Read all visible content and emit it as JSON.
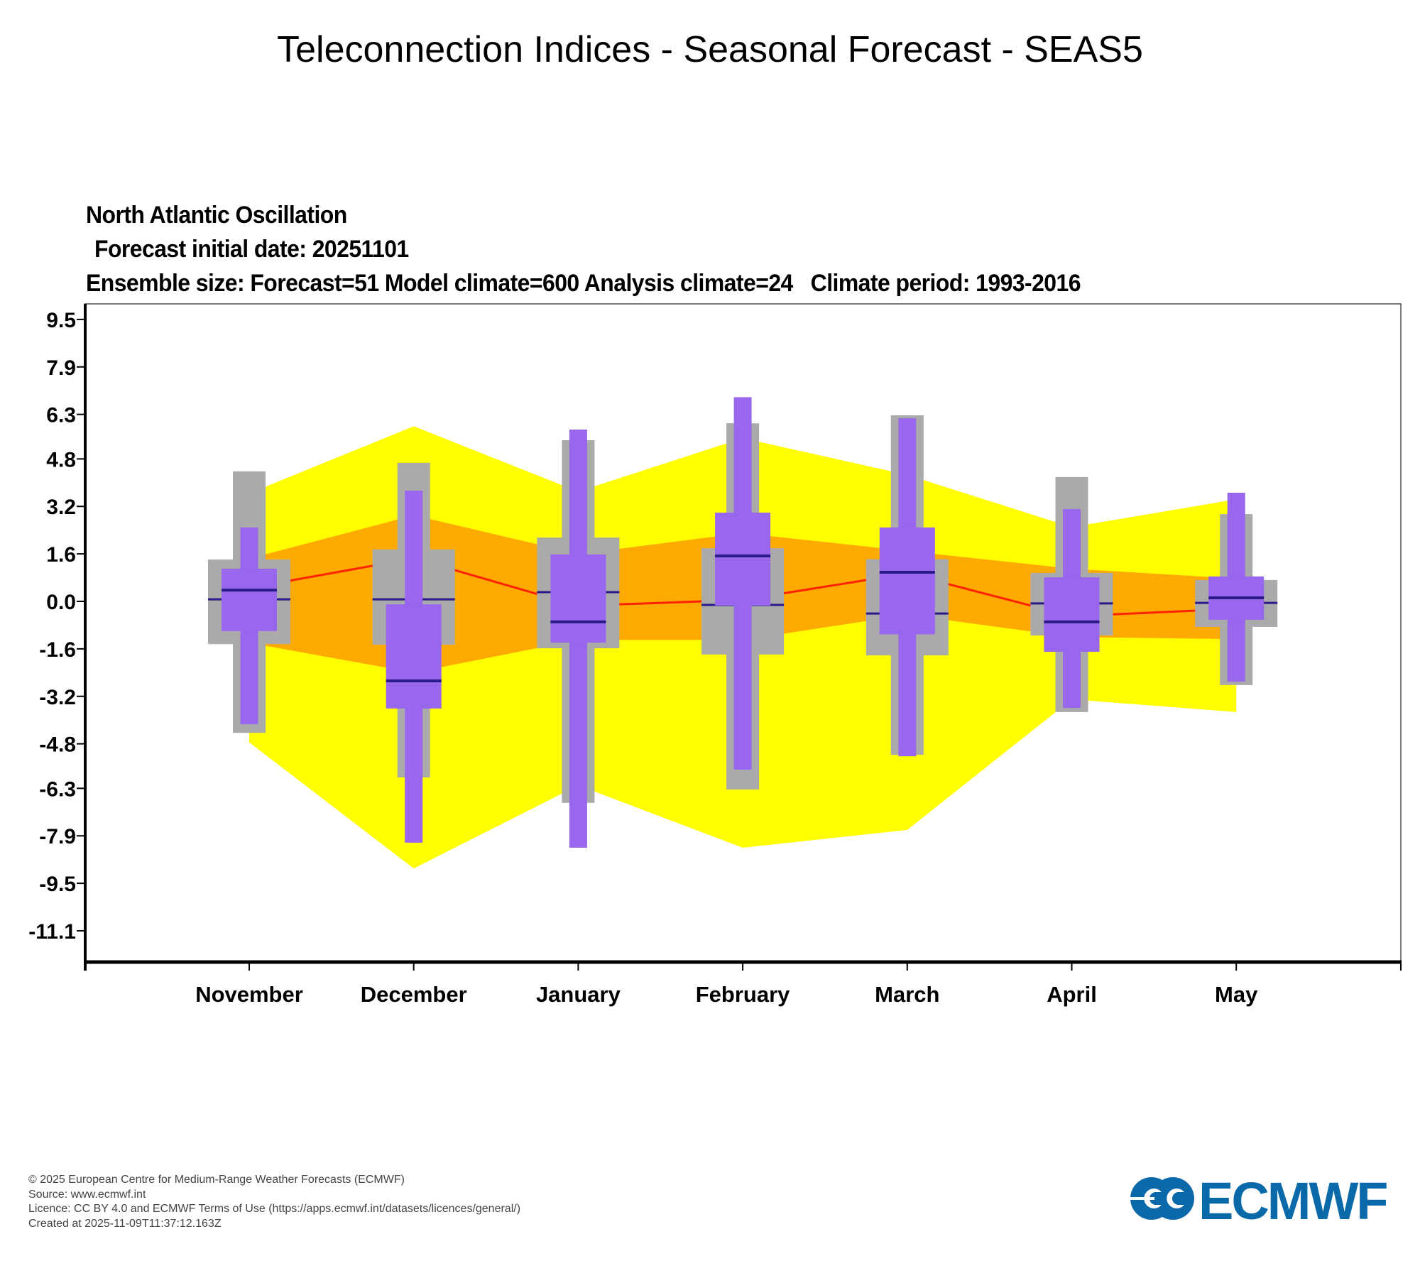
{
  "header": {
    "title": "Teleconnection Indices - Seasonal Forecast - SEAS5"
  },
  "chart_data": {
    "type": "box",
    "title": "North Atlantic Oscillation",
    "subtitle_lines": [
      "North Atlantic Oscillation",
      "Forecast initial date: 20251101",
      "Ensemble size: Forecast=51 Model climate=600 Analysis climate=24   Climate period: 1993-2016"
    ],
    "xlabel": "",
    "ylabel": "",
    "categories": [
      "November",
      "December",
      "January",
      "February",
      "March",
      "April",
      "May"
    ],
    "yticks": [
      9.5,
      7.9,
      6.3,
      4.8,
      3.2,
      1.6,
      0.0,
      -1.6,
      -3.2,
      -4.8,
      -6.3,
      -7.9,
      -9.5,
      -11.1
    ],
    "ytick_labels": [
      "9.5",
      "7.9",
      "6.3",
      "4.8",
      "3.2",
      "1.6",
      "0.0",
      "-1.6",
      "-3.2",
      "-4.8",
      "-6.3",
      "-7.9",
      "-9.5",
      "-11.1"
    ],
    "ylim": [
      -11.9,
      10.0
    ],
    "grid": false,
    "legend": "none",
    "colors": {
      "analysis_outer": "#ffff00",
      "analysis_inner": "#ffaa00",
      "analysis_median": "#ff2200",
      "model_climate": "#aaaaaa",
      "forecast": "#9966ee",
      "median_line": "#2a1a88"
    },
    "analysis_climate": {
      "name": "Analysis climate",
      "outer_upper": [
        3.64,
        5.9,
        3.7,
        5.5,
        4.26,
        2.5,
        3.44
      ],
      "outer_lower": [
        -4.75,
        -9.0,
        -6.2,
        -8.3,
        -7.7,
        -3.3,
        -3.73
      ],
      "inner_upper": [
        1.44,
        2.9,
        1.6,
        2.3,
        1.7,
        1.1,
        0.77
      ],
      "inner_lower": [
        -1.4,
        -2.4,
        -1.3,
        -1.3,
        -0.45,
        -1.2,
        -1.27
      ],
      "median": [
        0.45,
        1.45,
        -0.15,
        0.05,
        0.94,
        -0.5,
        -0.25
      ]
    },
    "series": [
      {
        "name": "Model climate",
        "whisker_high": [
          4.38,
          4.67,
          5.43,
          6.0,
          6.27,
          4.19,
          2.94
        ],
        "box_high": [
          1.41,
          1.75,
          2.15,
          1.79,
          1.42,
          0.96,
          0.72
        ],
        "median": [
          0.07,
          0.07,
          0.31,
          -0.12,
          -0.41,
          -0.07,
          -0.05
        ],
        "box_low": [
          -1.44,
          -1.46,
          -1.58,
          -1.79,
          -1.82,
          -1.15,
          -0.86
        ],
        "whisker_low": [
          -4.43,
          -5.93,
          -6.79,
          -6.34,
          -5.17,
          -3.73,
          -2.82
        ]
      },
      {
        "name": "Forecast",
        "whisker_high": [
          2.49,
          3.73,
          5.79,
          6.88,
          6.17,
          3.11,
          3.66
        ],
        "box_high": [
          1.1,
          -0.1,
          1.58,
          2.99,
          2.49,
          0.81,
          0.84
        ],
        "median": [
          0.38,
          -2.68,
          -0.69,
          1.53,
          0.98,
          -0.69,
          0.12
        ],
        "box_low": [
          -1.0,
          -3.61,
          -1.39,
          -0.14,
          -1.11,
          -1.7,
          -0.62
        ],
        "whisker_low": [
          -4.14,
          -8.13,
          -8.3,
          -5.67,
          -5.22,
          -3.59,
          -2.7
        ]
      }
    ]
  },
  "footer": {
    "lines": [
      "© 2025 European Centre for Medium-Range Weather Forecasts (ECMWF)",
      "Source: www.ecmwf.int",
      "Licence: CC BY 4.0 and ECMWF Terms of Use (https://apps.ecmwf.int/datasets/licences/general/)",
      "Created at 2025-11-09T11:37:12.163Z"
    ]
  },
  "logo": {
    "text": "ECMWF",
    "icon": "ecmwf-logo-icon",
    "color": "#0a69a8"
  }
}
